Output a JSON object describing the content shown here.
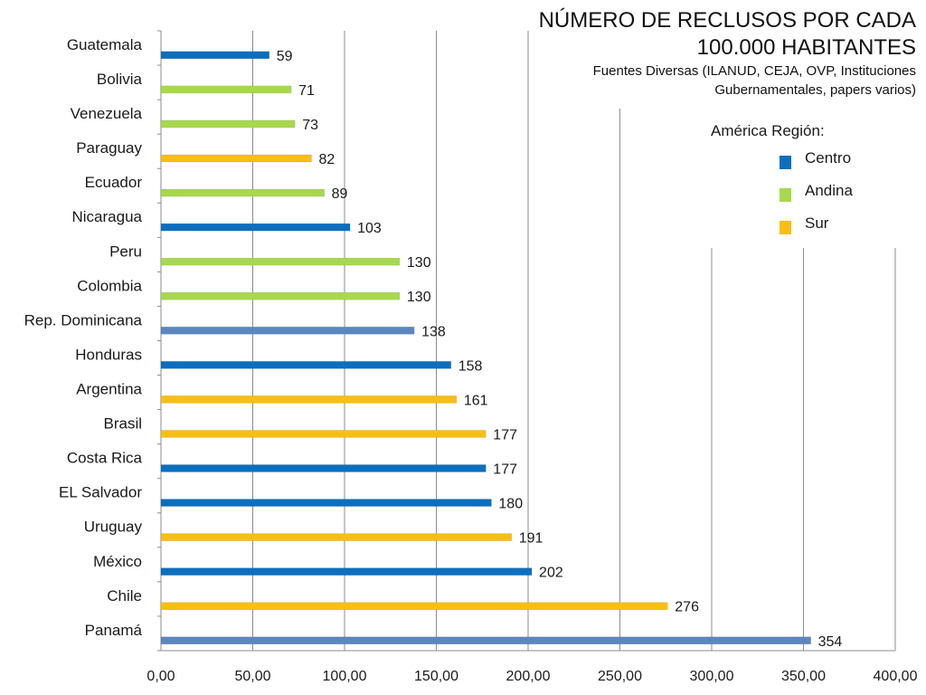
{
  "title": {
    "line1": "NÚMERO DE RECLUSOS POR CADA",
    "line2": "100.000 HABITANTES",
    "sub1": "Fuentes Diversas (ILANUD, CEJA, OVP, Instituciones",
    "sub2": "Gubernamentales, papers varios)"
  },
  "legend": {
    "title": "América Región:",
    "items": [
      {
        "label": "Centro",
        "color": "#0B6FBE"
      },
      {
        "label": "Andina",
        "color": "#A8D84E"
      },
      {
        "label": "Sur",
        "color": "#F8BF13"
      }
    ]
  },
  "chart_data": {
    "type": "bar",
    "orientation": "horizontal",
    "title": "NÚMERO DE RECLUSOS POR CADA 100.000 HABITANTES",
    "xlim": [
      0,
      400
    ],
    "x_ticks": [
      "0,00",
      "50,00",
      "100,00",
      "150,00",
      "200,00",
      "250,00",
      "300,00",
      "350,00",
      "400,00"
    ],
    "grid": "vertical",
    "legend_position": "top-right",
    "categories": [
      "Guatemala",
      "Bolivia",
      "Venezuela",
      "Paraguay",
      "Ecuador",
      "Nicaragua",
      "Peru",
      "Colombia",
      "Rep. Dominicana",
      "Honduras",
      "Argentina",
      "Brasil",
      "Costa Rica",
      "EL Salvador",
      "Uruguay",
      "México",
      "Chile",
      "Panamá"
    ],
    "values": [
      59,
      71,
      73,
      82,
      89,
      103,
      130,
      130,
      138,
      158,
      161,
      177,
      177,
      180,
      191,
      202,
      276,
      354
    ],
    "value_labels": [
      "59",
      "71",
      "73",
      "82",
      "89",
      "103",
      "130",
      "130",
      "138",
      "158",
      "161",
      "177",
      "177",
      "180",
      "191",
      "202",
      "276",
      "354"
    ],
    "colors": [
      "#0B6FBE",
      "#A8D84E",
      "#A8D84E",
      "#F8BF13",
      "#A8D84E",
      "#0B6FBE",
      "#A8D84E",
      "#A8D84E",
      "#5B87BF",
      "#0B6FBE",
      "#F8BF13",
      "#F8BF13",
      "#0B6FBE",
      "#0B6FBE",
      "#F8BF13",
      "#0B6FBE",
      "#F8BF13",
      "#5B87BF"
    ]
  }
}
